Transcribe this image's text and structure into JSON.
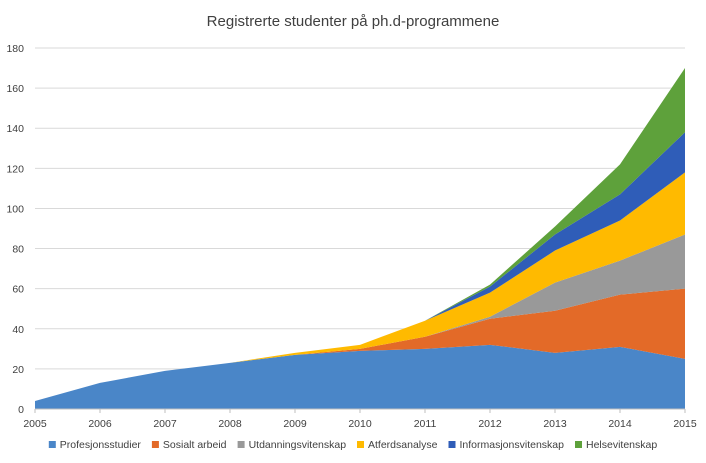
{
  "chart_data": {
    "type": "area",
    "stacked": true,
    "title": "Registrerte studenter på ph.d-programmene",
    "xlabel": "",
    "ylabel": "",
    "x": [
      "2005",
      "2006",
      "2007",
      "2008",
      "2009",
      "2010",
      "2011",
      "2012",
      "2013",
      "2014",
      "2015"
    ],
    "ylim": [
      0,
      180
    ],
    "yticks": [
      0,
      20,
      40,
      60,
      80,
      100,
      120,
      140,
      160,
      180
    ],
    "grid": true,
    "legend_position": "bottom",
    "series": [
      {
        "name": "Profesjonsstudier",
        "color": "#4A86C8",
        "values": [
          4,
          13,
          19,
          23,
          27,
          29,
          30,
          32,
          28,
          31,
          25
        ]
      },
      {
        "name": "Sosialt arbeid",
        "color": "#E36A28",
        "values": [
          0,
          0,
          0,
          0,
          0,
          1,
          6,
          13,
          21,
          26,
          35
        ]
      },
      {
        "name": "Utdanningsvitenskap",
        "color": "#999999",
        "values": [
          0,
          0,
          0,
          0,
          0,
          0,
          0,
          1,
          14,
          17,
          27
        ]
      },
      {
        "name": "Atferdsanalyse",
        "color": "#FFBA00",
        "values": [
          0,
          0,
          0,
          0,
          1,
          2,
          8,
          12,
          16,
          20,
          31
        ]
      },
      {
        "name": "Informasjonsvitenskap",
        "color": "#2F5DB8",
        "values": [
          0,
          0,
          0,
          0,
          0,
          0,
          0,
          3,
          8,
          13,
          20
        ]
      },
      {
        "name": "Helsevitenskap",
        "color": "#5EA13B",
        "values": [
          0,
          0,
          0,
          0,
          0,
          0,
          0,
          1,
          4,
          15,
          32
        ]
      }
    ]
  }
}
